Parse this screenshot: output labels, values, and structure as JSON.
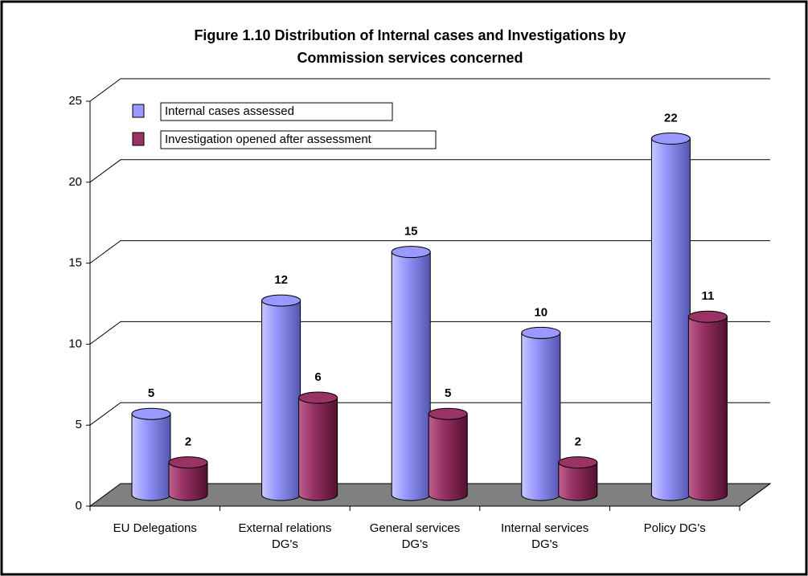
{
  "chart_data": {
    "type": "bar3d",
    "title": "Figure 1.10 Distribution of Internal cases and  Investigations by",
    "subtitle": "Commission services concerned",
    "categories": [
      "EU Delegations",
      "External relations DG's",
      "General services DG's",
      "Internal services DG's",
      "Policy DG's"
    ],
    "series": [
      {
        "name": "Internal cases assessed",
        "color": "#9999ff",
        "values": [
          5,
          12,
          15,
          10,
          22
        ]
      },
      {
        "name": "Investigation opened after assessment",
        "color": "#993366",
        "values": [
          2,
          6,
          5,
          2,
          11
        ]
      }
    ],
    "ylim": [
      0,
      25
    ],
    "yticks": [
      0,
      5,
      10,
      15,
      20,
      25
    ],
    "grid": true
  }
}
